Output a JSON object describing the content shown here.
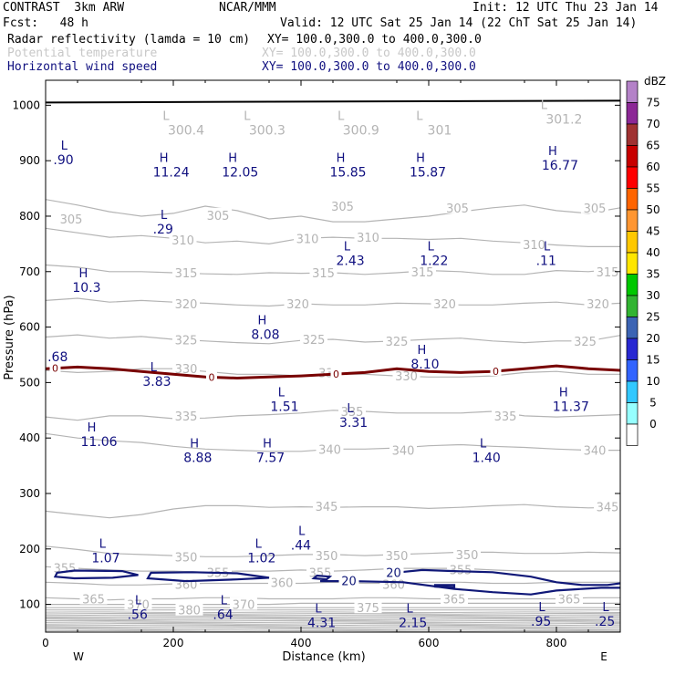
{
  "header": {
    "model": "CONTRAST  3km ARW",
    "org": "NCAR/MMM",
    "init": "Init: 12 UTC Thu 23 Jan 14",
    "fcst": "Fcst:   48 h",
    "valid": "Valid: 12 UTC Sat 25 Jan 14 (22 ChT Sat 25 Jan 14)",
    "field1": "Radar reflectivity (lamda = 10 cm)",
    "field1_xy": "XY= 100.0,300.0 to 400.0,300.0",
    "field2": "Potential temperature",
    "field2_xy": "XY= 100.0,300.0 to 400.0,300.0",
    "field3": "Horizontal wind speed",
    "field3_xy": "XY= 100.0,300.0 to 400.0,300.0"
  },
  "colors": {
    "theta": "#b4b4b4",
    "wind": "#101878",
    "zero_line": "#780000",
    "surface": "#000000",
    "label_blue": "#101080"
  },
  "chart_data": {
    "type": "cross-section",
    "xlabel": "Distance (km)",
    "ylabel": "Pressure (hPa)",
    "xlim": [
      0,
      900
    ],
    "ylim": [
      1045,
      50
    ],
    "x_ticks": [
      "0",
      "200",
      "400",
      "600",
      "800"
    ],
    "x_tick_values": [
      0,
      200,
      400,
      600,
      800
    ],
    "y_ticks": [
      "100",
      "200",
      "300",
      "400",
      "500",
      "600",
      "700",
      "800",
      "900",
      "1000"
    ],
    "y_tick_values": [
      100,
      200,
      300,
      400,
      500,
      600,
      700,
      800,
      900,
      1000
    ],
    "west_label": "W",
    "east_label": "E",
    "colorbar": {
      "unit": "dBZ",
      "levels": [
        "0",
        "5",
        "10",
        "15",
        "20",
        "25",
        "30",
        "35",
        "40",
        "45",
        "50",
        "55",
        "60",
        "65",
        "70",
        "75"
      ],
      "colors": [
        "#ffffff",
        "#96ffff",
        "#32c8ff",
        "#3264ff",
        "#2828d2",
        "#3c64b4",
        "#32b432",
        "#00c800",
        "#ffe600",
        "#ffc800",
        "#ff9632",
        "#ff6400",
        "#ff0000",
        "#c80000",
        "#a03232",
        "#8c2896",
        "#b482c8"
      ]
    },
    "theta_contours": [
      {
        "label": "305",
        "p": [
          830,
          820,
          808,
          800,
          805,
          818,
          810,
          795,
          800,
          790,
          790,
          795,
          800,
          808,
          815,
          820,
          810,
          805,
          815
        ],
        "labels_at": [
          [
            40,
            795
          ],
          [
            270,
            802
          ],
          [
            465,
            818
          ],
          [
            645,
            815
          ],
          [
            860,
            815
          ]
        ]
      },
      {
        "label": "310",
        "p": [
          778,
          770,
          762,
          765,
          760,
          752,
          755,
          750,
          760,
          762,
          760,
          760,
          758,
          760,
          755,
          752,
          748,
          745,
          745
        ],
        "labels_at": [
          [
            215,
            757
          ],
          [
            410,
            760
          ],
          [
            505,
            762
          ],
          [
            765,
            749
          ]
        ]
      },
      {
        "label": "315",
        "p": [
          712,
          708,
          700,
          700,
          698,
          696,
          695,
          698,
          697,
          698,
          695,
          698,
          702,
          700,
          695,
          695,
          702,
          700,
          705
        ],
        "labels_at": [
          [
            220,
            698
          ],
          [
            435,
            698
          ],
          [
            590,
            700
          ],
          [
            880,
            700
          ]
        ]
      },
      {
        "label": "320",
        "p": [
          648,
          652,
          645,
          648,
          645,
          643,
          640,
          638,
          642,
          640,
          640,
          643,
          642,
          640,
          640,
          643,
          645,
          640,
          643
        ],
        "labels_at": [
          [
            220,
            642
          ],
          [
            395,
            642
          ],
          [
            625,
            642
          ],
          [
            865,
            642
          ]
        ]
      },
      {
        "label": "325",
        "p": [
          582,
          586,
          580,
          583,
          578,
          575,
          572,
          570,
          576,
          578,
          573,
          575,
          578,
          580,
          575,
          572,
          575,
          575,
          585
        ],
        "labels_at": [
          [
            220,
            577
          ],
          [
            420,
            578
          ],
          [
            550,
            575
          ],
          [
            845,
            575
          ]
        ]
      },
      {
        "label": "330",
        "p": [
          522,
          518,
          520,
          525,
          525,
          520,
          515,
          515,
          512,
          515,
          515,
          512,
          510,
          510,
          512,
          518,
          520,
          515,
          515
        ],
        "labels_at": [
          [
            220,
            525
          ],
          [
            445,
            518
          ],
          [
            565,
            512
          ]
        ]
      },
      {
        "label": "335",
        "p": [
          438,
          432,
          440,
          440,
          435,
          436,
          440,
          442,
          445,
          450,
          448,
          445,
          445,
          445,
          448,
          440,
          438,
          440,
          442
        ],
        "labels_at": [
          [
            220,
            440
          ],
          [
            480,
            448
          ],
          [
            720,
            440
          ]
        ]
      },
      {
        "label": "340",
        "p": [
          408,
          400,
          395,
          392,
          385,
          380,
          378,
          376,
          376,
          380,
          380,
          382,
          386,
          388,
          385,
          383,
          380,
          378,
          378
        ],
        "labels_at": [
          [
            445,
            380
          ],
          [
            560,
            378
          ],
          [
            860,
            378
          ]
        ]
      },
      {
        "label": "345",
        "p": [
          268,
          262,
          256,
          262,
          272,
          278,
          278,
          275,
          276,
          275,
          276,
          276,
          273,
          275,
          278,
          280,
          276,
          274,
          275
        ],
        "labels_at": [
          [
            440,
            277
          ],
          [
            880,
            276
          ]
        ]
      },
      {
        "label": "350",
        "p": [
          205,
          199,
          192,
          190,
          188,
          186,
          186,
          188,
          190,
          190,
          188,
          190,
          192,
          194,
          194,
          192,
          192,
          194,
          193
        ],
        "labels_at": [
          [
            220,
            186
          ],
          [
            440,
            188
          ],
          [
            550,
            188
          ],
          [
            660,
            190
          ]
        ]
      },
      {
        "label": "355",
        "p": [
          168,
          165,
          162,
          160,
          160,
          158,
          160,
          160,
          162,
          160,
          162,
          165,
          165,
          165,
          162,
          160,
          160,
          160,
          160
        ],
        "labels_at": [
          [
            30,
            166
          ],
          [
            270,
            158
          ],
          [
            430,
            158
          ],
          [
            650,
            163
          ]
        ]
      },
      {
        "label": "360",
        "p": [
          140,
          138,
          135,
          135,
          137,
          138,
          138,
          138,
          138,
          140,
          138,
          138,
          140,
          140,
          138,
          138,
          140,
          140,
          140
        ],
        "labels_at": [
          [
            220,
            136
          ],
          [
            370,
            140
          ],
          [
            545,
            136
          ]
        ]
      },
      {
        "label": "365",
        "p": [
          112,
          110,
          108,
          110,
          110,
          112,
          112,
          110,
          110,
          110,
          112,
          112,
          110,
          110,
          110,
          110,
          110,
          112,
          112
        ],
        "labels_at": [
          [
            75,
            110
          ],
          [
            640,
            110
          ],
          [
            820,
            110
          ]
        ]
      },
      {
        "label": "370",
        "p": [
          100,
          100,
          100,
          100,
          100,
          100,
          100,
          100,
          102,
          102,
          102,
          102,
          102,
          102,
          102,
          102,
          102,
          102,
          102
        ],
        "labels_at": [
          [
            145,
            100
          ],
          [
            310,
            100
          ]
        ]
      },
      {
        "label": "375",
        "p": [
          94,
          94,
          94,
          94,
          94,
          94,
          94,
          94,
          94,
          94,
          94,
          94,
          94,
          94,
          94,
          94,
          94,
          94,
          94
        ],
        "labels_at": [
          [
            505,
            94
          ]
        ]
      },
      {
        "label": "380",
        "p": [
          90,
          90,
          90,
          90,
          90,
          90,
          90,
          90,
          90,
          90,
          90,
          90,
          90,
          90,
          90,
          90,
          90,
          90,
          90
        ],
        "labels_at": [
          [
            225,
            90
          ]
        ]
      }
    ],
    "wind_contour_20_segments": [
      {
        "x": [
          430,
          480,
          560,
          640,
          700,
          760,
          800,
          840,
          870,
          900
        ],
        "p": [
          142,
          142,
          140,
          128,
          122,
          118,
          125,
          128,
          130,
          130
        ]
      },
      {
        "x": [
          555,
          590,
          640,
          700,
          760,
          800,
          840,
          880,
          900
        ],
        "p": [
          158,
          162,
          160,
          158,
          150,
          140,
          135,
          135,
          138
        ]
      }
    ],
    "wind_labels": [
      {
        "text": "20",
        "x": 475,
        "p": 143
      },
      {
        "text": "20",
        "x": 545,
        "p": 158
      }
    ],
    "zero_isotherm": {
      "x": [
        0,
        50,
        100,
        150,
        200,
        250,
        300,
        350,
        400,
        450,
        500,
        550,
        600,
        650,
        700,
        750,
        800,
        850,
        900
      ],
      "p": [
        525,
        528,
        525,
        520,
        515,
        510,
        508,
        510,
        512,
        515,
        518,
        525,
        520,
        518,
        520,
        525,
        530,
        525,
        522
      ],
      "labels": [
        "0",
        "0",
        "0",
        "0"
      ],
      "labels_x": [
        15,
        260,
        455,
        705
      ]
    },
    "surface_p": 1005,
    "extrema": [
      {
        "type": "L",
        "value": ".56",
        "x": 128,
        "p": 100
      },
      {
        "type": "L",
        "value": ".64",
        "x": 262,
        "p": 100
      },
      {
        "type": "L",
        "value": "4.31",
        "x": 410,
        "p": 85
      },
      {
        "type": "L",
        "value": "2.15",
        "x": 553,
        "p": 85
      },
      {
        "type": "L",
        "value": ".95",
        "x": 760,
        "p": 88
      },
      {
        "type": "L",
        "value": ".25",
        "x": 860,
        "p": 88
      },
      {
        "type": "L",
        "value": "1.07",
        "x": 72,
        "p": 202
      },
      {
        "type": "L",
        "value": "1.02",
        "x": 316,
        "p": 202
      },
      {
        "type": "L",
        "value": ".44",
        "x": 384,
        "p": 225
      },
      {
        "type": "H",
        "value": "11.06",
        "x": 55,
        "p": 412
      },
      {
        "type": "H",
        "value": "8.88",
        "x": 216,
        "p": 383
      },
      {
        "type": "H",
        "value": "7.57",
        "x": 330,
        "p": 383
      },
      {
        "type": "L",
        "value": "1.40",
        "x": 668,
        "p": 383
      },
      {
        "type": "L",
        "value": "3.31",
        "x": 460,
        "p": 446
      },
      {
        "type": "L",
        "value": "1.51",
        "x": 352,
        "p": 475
      },
      {
        "type": "H",
        "value": "11.37",
        "x": 794,
        "p": 475
      },
      {
        "type": "L",
        "value": "3.83",
        "x": 152,
        "p": 520
      },
      {
        "type": "H",
        "value": "8.10",
        "x": 572,
        "p": 552
      },
      {
        "type": "",
        "value": ".68",
        "x": 3,
        "p": 565
      },
      {
        "type": "H",
        "value": "8.08",
        "x": 322,
        "p": 605
      },
      {
        "type": "H",
        "value": "10.3",
        "x": 42,
        "p": 690
      },
      {
        "type": "L",
        "value": "2.43",
        "x": 455,
        "p": 738
      },
      {
        "type": "L",
        "value": "1.22",
        "x": 586,
        "p": 738
      },
      {
        "type": "L",
        "value": ".11",
        "x": 768,
        "p": 738
      },
      {
        "type": "L",
        "value": ".29",
        "x": 168,
        "p": 795
      },
      {
        "type": "H",
        "value": "11.24",
        "x": 168,
        "p": 898
      },
      {
        "type": "H",
        "value": "12.05",
        "x": 276,
        "p": 898
      },
      {
        "type": "H",
        "value": "15.85",
        "x": 445,
        "p": 898
      },
      {
        "type": "H",
        "value": "15.87",
        "x": 570,
        "p": 898
      },
      {
        "type": "H",
        "value": "16.77",
        "x": 777,
        "p": 910
      },
      {
        "type": "L",
        "value": ".90",
        "x": 12,
        "p": 920
      }
    ],
    "surface_values": [
      {
        "value": "300.4",
        "x": 220,
        "p": 960
      },
      {
        "value": "300.3",
        "x": 347,
        "p": 960
      },
      {
        "value": "300.9",
        "x": 494,
        "p": 960
      },
      {
        "value": "301",
        "x": 617,
        "p": 960
      },
      {
        "value": "301.2",
        "x": 812,
        "p": 980
      }
    ]
  }
}
